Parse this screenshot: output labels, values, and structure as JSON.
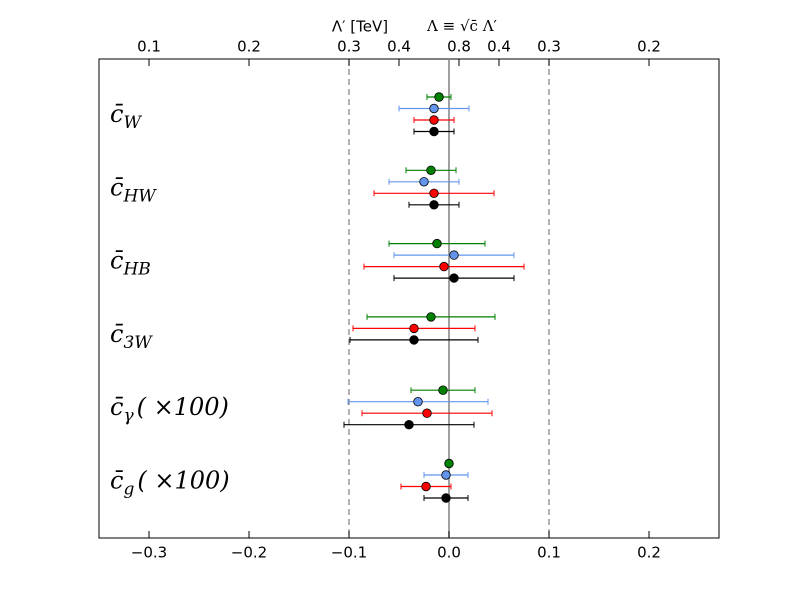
{
  "chart_data": {
    "type": "errorbar",
    "x2_title_left": "Λ′  [TeV]",
    "x2_title_right": "Λ ≡ √c̄ Λ′",
    "categories": [
      {
        "symbol": "c̄",
        "sub": "W"
      },
      {
        "symbol": "c̄",
        "sub": "HW"
      },
      {
        "symbol": "c̄",
        "sub": "HB"
      },
      {
        "symbol": "c̄",
        "sub": "3W"
      },
      {
        "symbol": "c̄",
        "sub": "γ",
        "suffix": "( ×100)"
      },
      {
        "symbol": "c̄",
        "sub": "g",
        "suffix": "( ×100)"
      }
    ],
    "series": [
      {
        "color": "#008000",
        "values": [
          -0.01,
          -0.018,
          -0.012,
          -0.018,
          -0.006,
          0
        ],
        "errors": [
          0.012,
          0.025,
          0.048,
          0.064,
          0.032,
          0
        ]
      },
      {
        "color": "#6495ed",
        "values": [
          -0.015,
          -0.025,
          0.005,
          null,
          -0.031,
          -0.003
        ],
        "errors": [
          0.035,
          0.035,
          0.06,
          null,
          0.07,
          0.022
        ]
      },
      {
        "color": "#ff0000",
        "values": [
          -0.015,
          -0.015,
          -0.005,
          -0.035,
          -0.022,
          -0.023
        ],
        "errors": [
          0.02,
          0.06,
          0.08,
          0.061,
          0.065,
          0.025
        ]
      },
      {
        "color": "#000000",
        "values": [
          -0.015,
          -0.015,
          0.005,
          -0.035,
          -0.04,
          -0.003
        ],
        "errors": [
          0.02,
          0.025,
          0.06,
          0.064,
          0.065,
          0.022
        ]
      }
    ],
    "xlim": [
      -0.35,
      0.27
    ],
    "xticks": [
      {
        "value": -0.3,
        "label": "−0.3"
      },
      {
        "value": -0.2,
        "label": "−0.2"
      },
      {
        "value": -0.1,
        "label": "−0.1"
      },
      {
        "value": 0,
        "label": "0.0"
      },
      0.1,
      0.2
    ],
    "x2ticks": [
      {
        "value": -0.3,
        "label": "0.1"
      },
      {
        "value": -0.2,
        "label": "0.2"
      },
      {
        "value": -0.1,
        "label": "0.3"
      },
      {
        "value": -0.05,
        "label": "0.4"
      },
      {
        "value": 0.01,
        "label": "0.8"
      },
      {
        "value": 0.05,
        "label": "0.4"
      },
      {
        "value": 0.1,
        "label": "0.3"
      },
      {
        "value": 0.2,
        "label": "0.2"
      }
    ],
    "vlines": [
      {
        "value": -0.1,
        "style": "dashed"
      },
      {
        "value": 0,
        "style": "solid"
      },
      {
        "value": 0.1,
        "style": "dashed"
      }
    ]
  }
}
